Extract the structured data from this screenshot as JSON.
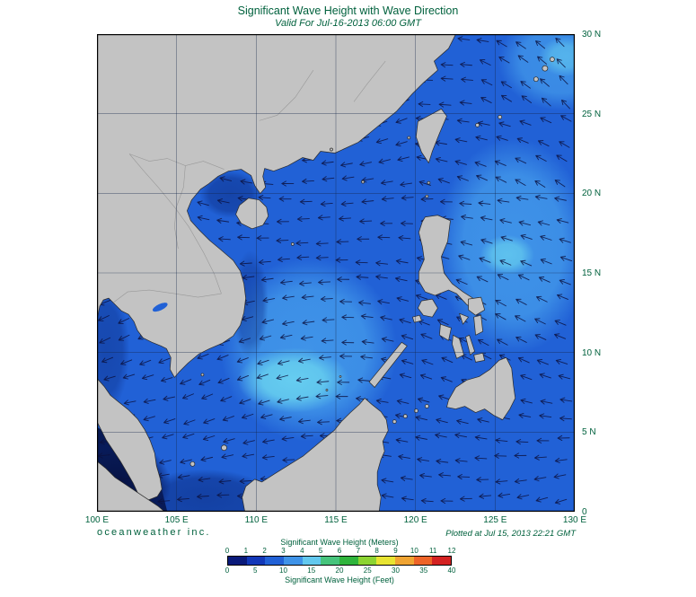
{
  "title": "Significant Wave Height with Wave Direction",
  "subtitle": "Valid For Jul-16-2013 06:00 GMT",
  "branding": "oceanweather inc.",
  "plotted": "Plotted at Jul 15, 2013 22:21 GMT",
  "text_color": "#00613d",
  "axes": {
    "lon_labels": [
      "100 E",
      "105 E",
      "110 E",
      "115 E",
      "120 E",
      "125 E",
      "130 E"
    ],
    "lat_labels": [
      "30 N",
      "25 N",
      "20 N",
      "15 N",
      "10 N",
      "5 N",
      "0"
    ],
    "lon_range": [
      100,
      130
    ],
    "lat_range": [
      0,
      30
    ],
    "grid_interval_deg": 5
  },
  "legend": {
    "meters_title": "Significant Wave Height (Meters)",
    "feet_title": "Significant Wave Height (Feet)",
    "meters_ticks": [
      "0",
      "1",
      "2",
      "3",
      "4",
      "5",
      "6",
      "7",
      "8",
      "9",
      "10",
      "11",
      "12"
    ],
    "feet_ticks": [
      "0",
      "5",
      "10",
      "15",
      "20",
      "25",
      "30",
      "35",
      "40"
    ],
    "bar_colors": [
      "#0a1a7a",
      "#1238b8",
      "#2161d6",
      "#3f93e8",
      "#62c8ee",
      "#46c47c",
      "#2fb43c",
      "#8cd432",
      "#e8e432",
      "#f0a432",
      "#ee6428",
      "#d42222"
    ]
  },
  "map_colors": {
    "ocean_base": "#2161d6",
    "land": "#c3c3c3",
    "coast": "#2b2b2b",
    "grid": "#14264a",
    "arrow": "#0c1240",
    "patch_light": "#3f93e8",
    "patch_cyan": "#62c8ee",
    "patch_dark": "#103896",
    "patch_navy": "#081a55"
  },
  "arrows": {
    "spacing": 22,
    "length": 13
  }
}
